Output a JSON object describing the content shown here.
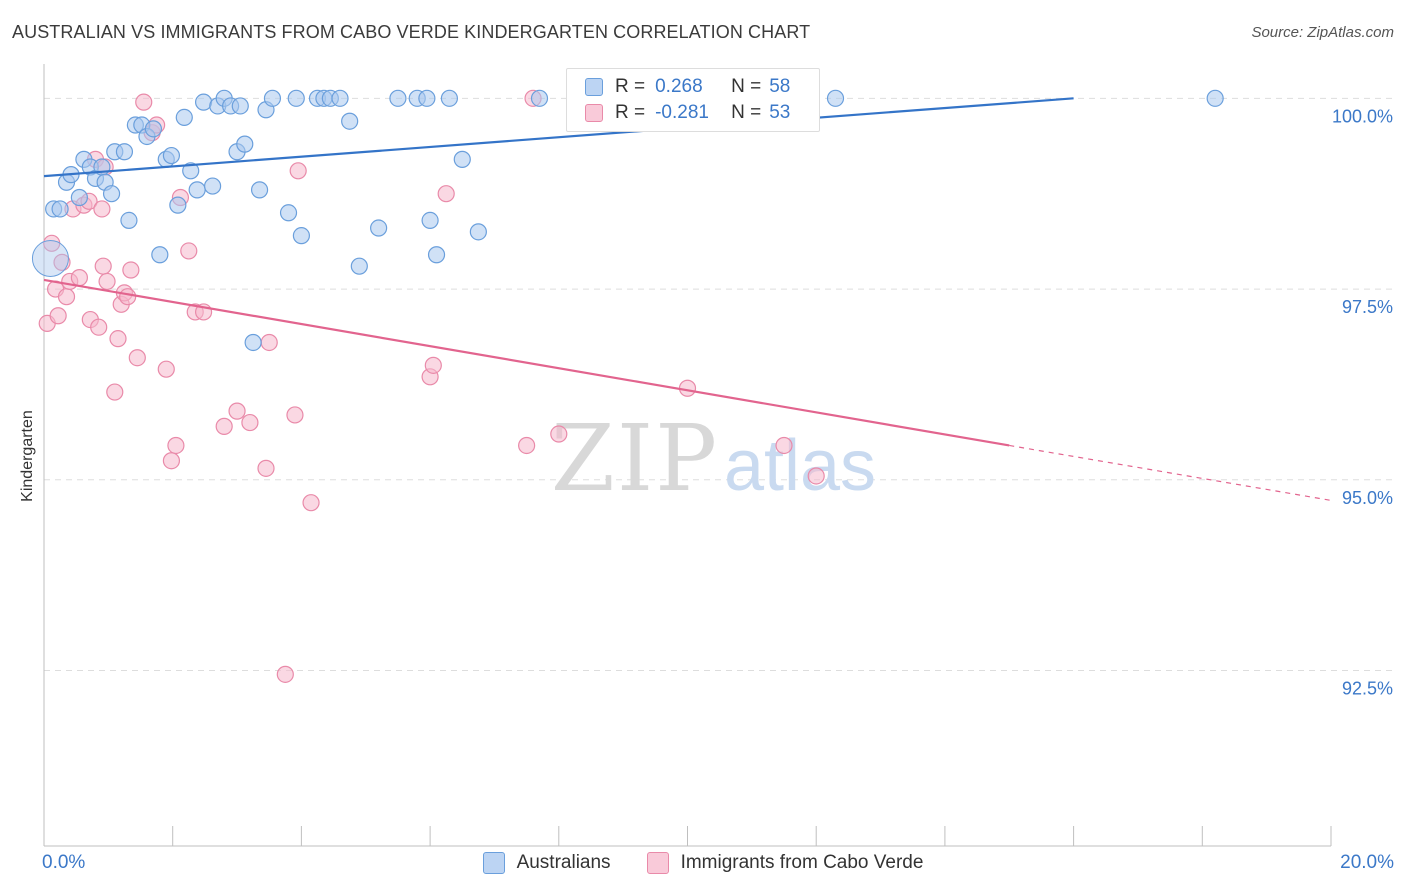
{
  "title": "AUSTRALIAN VS IMMIGRANTS FROM CABO VERDE KINDERGARTEN CORRELATION CHART",
  "source": "Source: ZipAtlas.com",
  "watermark": {
    "zip": "ZIP",
    "atlas": "atlas"
  },
  "colors": {
    "blue_fill": "#aac8ee",
    "blue_stroke": "#6a9fdc",
    "blue_line": "#3474c8",
    "pink_fill": "#f6b8cc",
    "pink_stroke": "#e98aa9",
    "pink_line": "#e2648e",
    "tick_text": "#3b78c8",
    "grid": "#dddddd"
  },
  "legend": {
    "rows": [
      {
        "r_label": "R =",
        "r_value": "0.268",
        "n_label": "N =",
        "n_value": "58"
      },
      {
        "r_label": "R =",
        "r_value": "-0.281",
        "n_label": "N =",
        "n_value": "53"
      }
    ]
  },
  "bottom_legend": [
    "Australians",
    "Immigrants from Cabo Verde"
  ],
  "chart_data": {
    "type": "scatter",
    "title": "AUSTRALIAN VS IMMIGRANTS FROM CABO VERDE KINDERGARTEN CORRELATION CHART",
    "xlabel": "",
    "ylabel": "Kindergarten",
    "xlim": [
      0,
      20
    ],
    "ylim": [
      90.2,
      100.45
    ],
    "x_tick_labels": [
      "0.0%",
      "20.0%"
    ],
    "y_ticks": [
      92.5,
      95.0,
      97.5,
      100.0
    ],
    "y_tick_labels": [
      "92.5%",
      "95.0%",
      "97.5%",
      "100.0%"
    ],
    "grid": true,
    "legend_position": "top-center",
    "series": [
      {
        "name": "Australians",
        "color": "#6a9fdc",
        "trend": {
          "x": [
            0,
            16
          ],
          "y": [
            98.98,
            100.0
          ]
        },
        "points": [
          [
            0.15,
            98.55
          ],
          [
            0.25,
            98.55
          ],
          [
            0.35,
            98.9
          ],
          [
            0.42,
            99.0
          ],
          [
            0.55,
            98.7
          ],
          [
            0.62,
            99.2
          ],
          [
            0.72,
            99.1
          ],
          [
            0.8,
            98.95
          ],
          [
            0.9,
            99.1
          ],
          [
            0.95,
            98.9
          ],
          [
            1.05,
            98.75
          ],
          [
            1.1,
            99.3
          ],
          [
            1.25,
            99.3
          ],
          [
            1.32,
            98.4
          ],
          [
            1.42,
            99.65
          ],
          [
            1.52,
            99.65
          ],
          [
            1.6,
            99.5
          ],
          [
            1.7,
            99.6
          ],
          [
            1.8,
            97.95
          ],
          [
            1.9,
            99.2
          ],
          [
            1.98,
            99.25
          ],
          [
            2.08,
            98.6
          ],
          [
            2.18,
            99.75
          ],
          [
            2.28,
            99.05
          ],
          [
            2.38,
            98.8
          ],
          [
            2.48,
            99.95
          ],
          [
            2.62,
            98.85
          ],
          [
            2.7,
            99.9
          ],
          [
            2.8,
            100.0
          ],
          [
            2.9,
            99.9
          ],
          [
            3.0,
            99.3
          ],
          [
            3.05,
            99.9
          ],
          [
            3.12,
            99.4
          ],
          [
            3.25,
            96.8
          ],
          [
            3.35,
            98.8
          ],
          [
            3.45,
            99.85
          ],
          [
            3.55,
            100.0
          ],
          [
            3.8,
            98.5
          ],
          [
            3.92,
            100.0
          ],
          [
            4.0,
            98.2
          ],
          [
            4.25,
            100.0
          ],
          [
            4.35,
            100.0
          ],
          [
            4.45,
            100.0
          ],
          [
            4.6,
            100.0
          ],
          [
            4.75,
            99.7
          ],
          [
            4.9,
            97.8
          ],
          [
            5.2,
            98.3
          ],
          [
            5.5,
            100.0
          ],
          [
            5.8,
            100.0
          ],
          [
            5.95,
            100.0
          ],
          [
            6.0,
            98.4
          ],
          [
            6.1,
            97.95
          ],
          [
            6.3,
            100.0
          ],
          [
            6.5,
            99.2
          ],
          [
            6.75,
            98.25
          ],
          [
            7.7,
            100.0
          ],
          [
            12.3,
            100.0
          ],
          [
            18.2,
            100.0
          ]
        ]
      },
      {
        "name": "Immigrants from Cabo Verde",
        "color": "#e98aa9",
        "trend": {
          "x": [
            0,
            15
          ],
          "y": [
            97.62,
            95.45
          ]
        },
        "trend_dashed": {
          "x": [
            15,
            20
          ],
          "y": [
            95.45,
            94.73
          ]
        },
        "points": [
          [
            0.05,
            97.05
          ],
          [
            0.12,
            98.1
          ],
          [
            0.18,
            97.5
          ],
          [
            0.22,
            97.15
          ],
          [
            0.28,
            97.85
          ],
          [
            0.35,
            97.4
          ],
          [
            0.4,
            97.6
          ],
          [
            0.45,
            98.55
          ],
          [
            0.55,
            97.65
          ],
          [
            0.62,
            98.6
          ],
          [
            0.7,
            98.65
          ],
          [
            0.72,
            97.1
          ],
          [
            0.8,
            99.2
          ],
          [
            0.85,
            97.0
          ],
          [
            0.9,
            98.55
          ],
          [
            0.92,
            97.8
          ],
          [
            0.95,
            99.1
          ],
          [
            0.98,
            97.6
          ],
          [
            1.1,
            96.15
          ],
          [
            1.15,
            96.85
          ],
          [
            1.2,
            97.3
          ],
          [
            1.25,
            97.45
          ],
          [
            1.3,
            97.4
          ],
          [
            1.35,
            97.75
          ],
          [
            1.45,
            96.6
          ],
          [
            1.55,
            99.95
          ],
          [
            1.68,
            99.55
          ],
          [
            1.75,
            99.65
          ],
          [
            1.9,
            96.45
          ],
          [
            1.98,
            95.25
          ],
          [
            2.05,
            95.45
          ],
          [
            2.12,
            98.7
          ],
          [
            2.25,
            98.0
          ],
          [
            2.35,
            97.2
          ],
          [
            2.48,
            97.2
          ],
          [
            2.8,
            95.7
          ],
          [
            3.0,
            95.9
          ],
          [
            3.2,
            95.75
          ],
          [
            3.45,
            95.15
          ],
          [
            3.5,
            96.8
          ],
          [
            3.75,
            92.45
          ],
          [
            3.9,
            95.85
          ],
          [
            3.95,
            99.05
          ],
          [
            4.15,
            94.7
          ],
          [
            6.0,
            96.35
          ],
          [
            6.05,
            96.5
          ],
          [
            6.25,
            98.75
          ],
          [
            7.5,
            95.45
          ],
          [
            7.6,
            100.0
          ],
          [
            8.0,
            95.6
          ],
          [
            10.0,
            96.2
          ],
          [
            11.5,
            95.45
          ],
          [
            12.0,
            95.05
          ]
        ]
      }
    ]
  }
}
